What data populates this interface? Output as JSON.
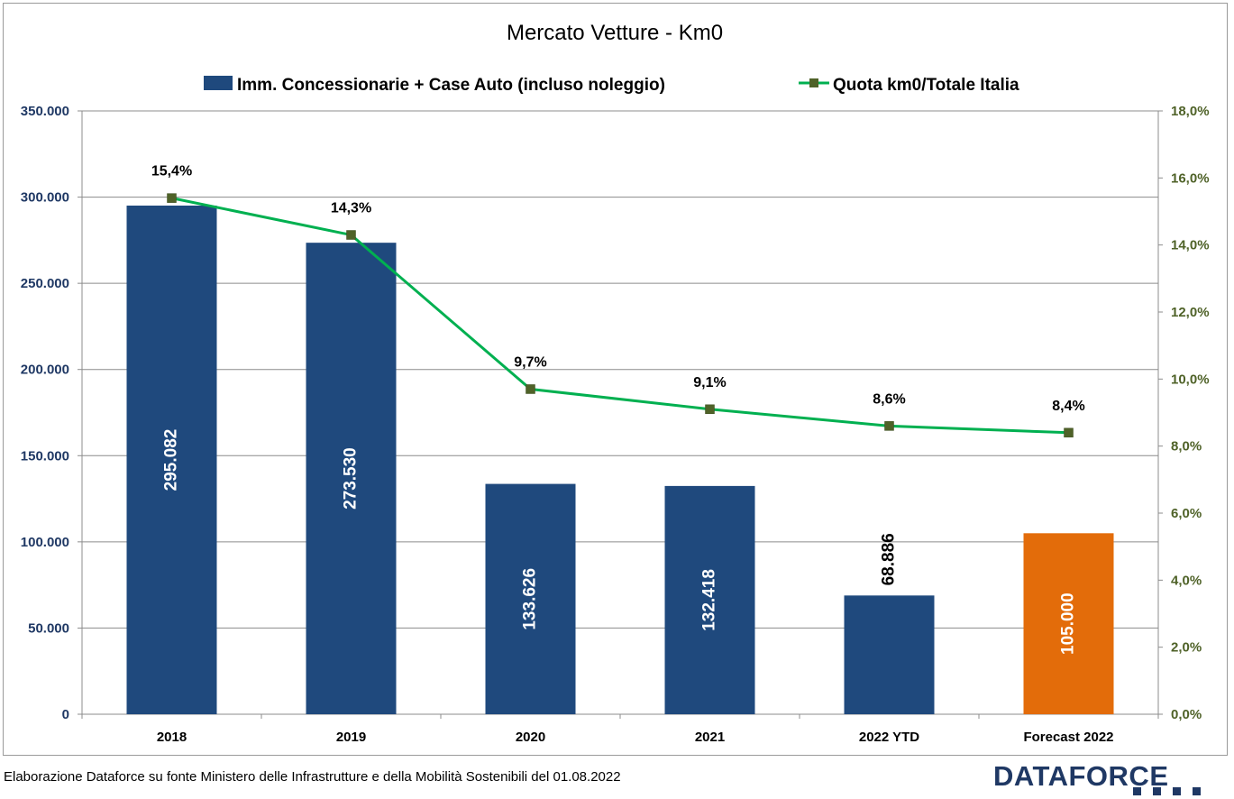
{
  "chart_data": {
    "type": "bar",
    "title": "Mercato Vetture - Km0",
    "categories": [
      "2018",
      "2019",
      "2020",
      "2021",
      "2022 YTD",
      "Forecast 2022"
    ],
    "series": [
      {
        "name": "Imm. Concessionarie + Case Auto (incluso noleggio)",
        "type": "bar",
        "axis": "left",
        "values": [
          295082,
          273530,
          133626,
          132418,
          68886,
          105000
        ],
        "labels": [
          "295.082",
          "273.530",
          "133.626",
          "132.418",
          "68.886",
          "105.000"
        ],
        "color": "#1f497d",
        "highlight": {
          "index": 5,
          "color": "#e36c0a"
        }
      },
      {
        "name": "Quota km0/Totale Italia",
        "type": "line",
        "axis": "right",
        "values": [
          15.4,
          14.3,
          9.7,
          9.1,
          8.6,
          8.4
        ],
        "labels": [
          "15,4%",
          "14,3%",
          "9,7%",
          "9,1%",
          "8,6%",
          "8,4%"
        ],
        "color": "#00b050",
        "marker_color": "#4f6228"
      }
    ],
    "y_left": {
      "ylim": [
        0,
        350000
      ],
      "ticks": [
        "0",
        "50.000",
        "100.000",
        "150.000",
        "200.000",
        "250.000",
        "300.000",
        "350.000"
      ]
    },
    "y_right": {
      "ylim": [
        0,
        18
      ],
      "ticks": [
        "0,0%",
        "2,0%",
        "4,0%",
        "6,0%",
        "8,0%",
        "10,0%",
        "12,0%",
        "14,0%",
        "16,0%",
        "18,0%"
      ]
    },
    "grid": true,
    "legend": "top"
  },
  "footer": {
    "source": "Elaborazione Dataforce su fonte Ministero delle Infrastrutture e della Mobilità Sostenibili del 01.08.2022",
    "brand": "DATAFORCE"
  }
}
